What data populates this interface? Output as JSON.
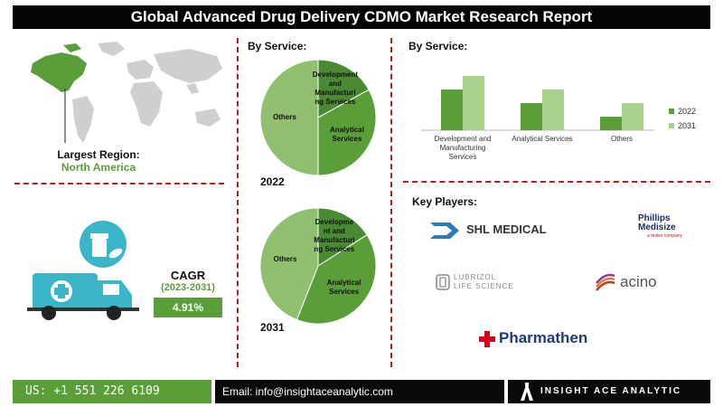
{
  "title": "Global Advanced Drug Delivery CDMO Market Research Report",
  "largest_region": {
    "label": "Largest Region:",
    "value": "North America"
  },
  "cagr": {
    "label": "CAGR",
    "period": "(2023-2031)",
    "value": "4.91%"
  },
  "colors": {
    "green": "#5a9e3a",
    "dark_green": "#4a8a32",
    "light_green": "#8fbf6f",
    "pale_green": "#a8d18b",
    "divider": "#b22222"
  },
  "pie_section_label": "By Service:",
  "bar_section_label": "By Service:",
  "key_players_label": "Key Players:",
  "chart_data": [
    {
      "type": "pie",
      "year_label": "2022",
      "slices": [
        {
          "label": "Development and Manufacturing Services",
          "display": [
            "Development",
            "and",
            "Manufacturi",
            "ng Services"
          ],
          "value": 0.17
        },
        {
          "label": "Analytical Services",
          "display": [
            "Analytical",
            "Services"
          ],
          "value": 0.33
        },
        {
          "label": "Others",
          "display": [
            "Others"
          ],
          "value": 0.5
        }
      ]
    },
    {
      "type": "pie",
      "year_label": "2031",
      "slices": [
        {
          "label": "Development and Manufacturing Services",
          "display": [
            "Developme",
            "nt and",
            "Manufacturi",
            "ng Services"
          ],
          "value": 0.16
        },
        {
          "label": "Analytical Services",
          "display": [
            "Analytical",
            "Services"
          ],
          "value": 0.4
        },
        {
          "label": "Others",
          "display": [
            "Others"
          ],
          "value": 0.44
        }
      ]
    },
    {
      "type": "bar",
      "categories": [
        "Development and Manufacturing Services",
        "Analytical Services",
        "Others"
      ],
      "category_display": [
        [
          "Development and",
          "Manufacturing",
          "Services"
        ],
        [
          "Analytical Services"
        ],
        [
          "Others"
        ]
      ],
      "series": [
        {
          "name": "2022",
          "values": [
            45,
            30,
            15
          ]
        },
        {
          "name": "2031",
          "values": [
            60,
            45,
            30
          ]
        }
      ],
      "ylim": [
        0,
        70
      ],
      "legend": "right",
      "grid": false
    }
  ],
  "key_players": [
    {
      "name": "SHL MEDICAL",
      "icon": "shl-logo-icon"
    },
    {
      "name_line1": "Phillips",
      "name_line2": "Medisize",
      "name_line3": "a molex company",
      "icon": "phillips-medisize-logo"
    },
    {
      "name_line1": "LUBRIZOL",
      "name_line2": "LIFE SCIENCE",
      "icon": "lubrizol-logo-icon"
    },
    {
      "name": "acino",
      "icon": "acino-logo-icon"
    },
    {
      "name": "Pharmathen",
      "icon": "pharmathen-cross-icon"
    }
  ],
  "footer": {
    "phone": "US: +1 551 226 6109",
    "email": "Email: info@insightaceanalytic.com",
    "brand": "INSIGHT ACE ANALYTIC"
  }
}
